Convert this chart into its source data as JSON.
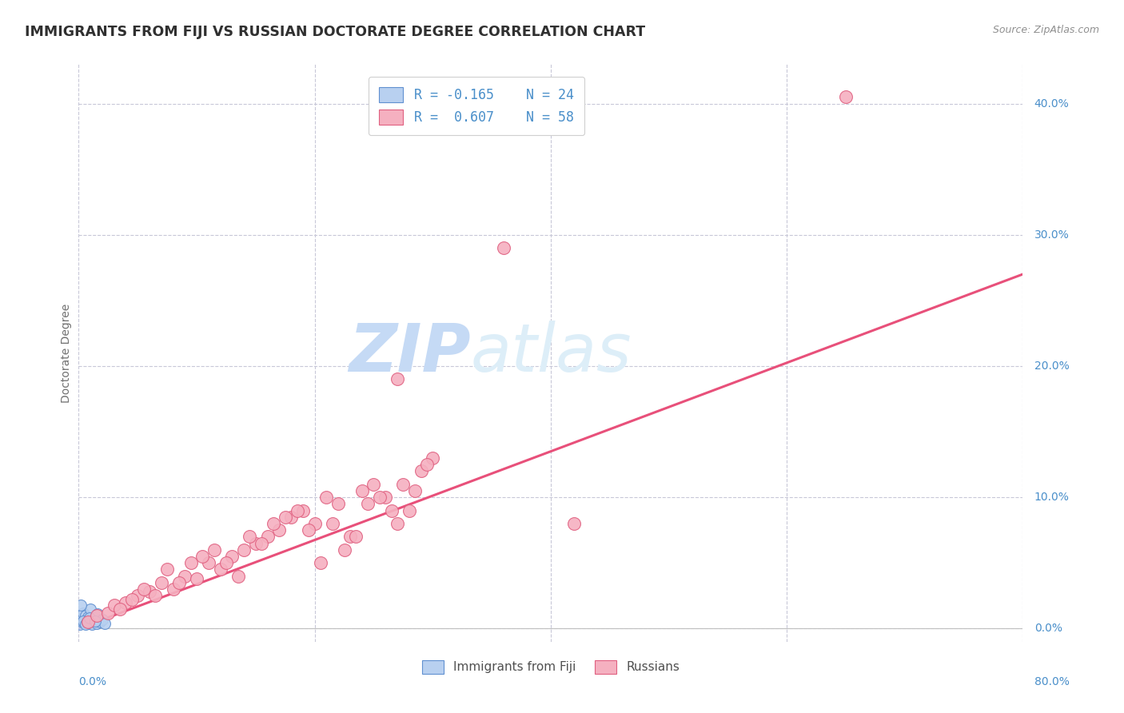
{
  "title": "IMMIGRANTS FROM FIJI VS RUSSIAN DOCTORATE DEGREE CORRELATION CHART",
  "source": "Source: ZipAtlas.com",
  "ylabel": "Doctorate Degree",
  "ytick_labels": [
    "0.0%",
    "10.0%",
    "20.0%",
    "30.0%",
    "40.0%"
  ],
  "ytick_values": [
    0,
    10,
    20,
    30,
    40
  ],
  "xlim": [
    0,
    80
  ],
  "ylim": [
    -1,
    43
  ],
  "legend_fiji_r": "R = -0.165",
  "legend_fiji_n": "N = 24",
  "legend_russian_r": "R =  0.607",
  "legend_russian_n": "N = 58",
  "fiji_color": "#b8d0f0",
  "russian_color": "#f5b0c0",
  "fiji_edge_color": "#6090d0",
  "russian_edge_color": "#e06080",
  "fiji_trend_color": "#90b8e8",
  "russian_trend_color": "#e8507a",
  "grid_color": "#c8c8d8",
  "title_color": "#303030",
  "axis_label_color": "#4a8fca",
  "watermark_color": "#ddeeff",
  "fiji_points_x": [
    0.1,
    0.2,
    0.3,
    0.4,
    0.5,
    0.6,
    0.7,
    0.8,
    0.9,
    1.0,
    1.1,
    1.2,
    1.3,
    1.5,
    1.6,
    1.8,
    2.0,
    2.2,
    0.15,
    0.35,
    0.55,
    0.75,
    0.95,
    1.4
  ],
  "fiji_points_y": [
    0.3,
    0.8,
    0.5,
    1.2,
    0.6,
    1.0,
    0.4,
    0.9,
    0.7,
    1.5,
    0.3,
    0.6,
    0.8,
    0.4,
    1.1,
    0.5,
    0.7,
    0.4,
    1.8,
    0.6,
    0.3,
    0.5,
    0.8,
    0.6
  ],
  "russian_points_x": [
    0.8,
    1.5,
    2.5,
    3.0,
    4.0,
    5.0,
    6.0,
    7.0,
    8.0,
    9.0,
    10.0,
    11.0,
    12.0,
    13.0,
    14.0,
    15.0,
    16.0,
    17.0,
    18.0,
    19.0,
    20.0,
    21.0,
    22.0,
    23.0,
    24.0,
    25.0,
    26.0,
    27.0,
    28.0,
    29.0,
    30.0,
    3.5,
    4.5,
    5.5,
    6.5,
    7.5,
    8.5,
    9.5,
    10.5,
    11.5,
    12.5,
    13.5,
    14.5,
    15.5,
    16.5,
    17.5,
    18.5,
    19.5,
    20.5,
    21.5,
    22.5,
    23.5,
    24.5,
    25.5,
    26.5,
    27.5,
    28.5,
    29.5
  ],
  "russian_points_y": [
    0.5,
    1.0,
    1.2,
    1.8,
    2.0,
    2.5,
    2.8,
    3.5,
    3.0,
    4.0,
    3.8,
    5.0,
    4.5,
    5.5,
    6.0,
    6.5,
    7.0,
    7.5,
    8.5,
    9.0,
    8.0,
    10.0,
    9.5,
    7.0,
    10.5,
    11.0,
    10.0,
    8.0,
    9.0,
    12.0,
    13.0,
    1.5,
    2.2,
    3.0,
    2.5,
    4.5,
    3.5,
    5.0,
    5.5,
    6.0,
    5.0,
    4.0,
    7.0,
    6.5,
    8.0,
    8.5,
    9.0,
    7.5,
    5.0,
    8.0,
    6.0,
    7.0,
    9.5,
    10.0,
    9.0,
    11.0,
    10.5,
    12.5
  ],
  "russian_outlier_x": 65.0,
  "russian_outlier_y": 40.5,
  "russian_far_x": [
    42.0
  ],
  "russian_far_y": [
    8.0
  ],
  "russian_far2_x": [
    36.0
  ],
  "russian_far2_y": [
    29.0
  ],
  "russian_far3_x": [
    27.0
  ],
  "russian_far3_y": [
    19.0
  ],
  "fiji_trend_x0": 0.0,
  "fiji_trend_y0": 0.85,
  "fiji_trend_x1": 2.5,
  "fiji_trend_y1": 0.55,
  "russian_trend_x0": 0.0,
  "russian_trend_y0": 0.0,
  "russian_trend_x1": 80.0,
  "russian_trend_y1": 27.0,
  "bg_color": "#ffffff"
}
